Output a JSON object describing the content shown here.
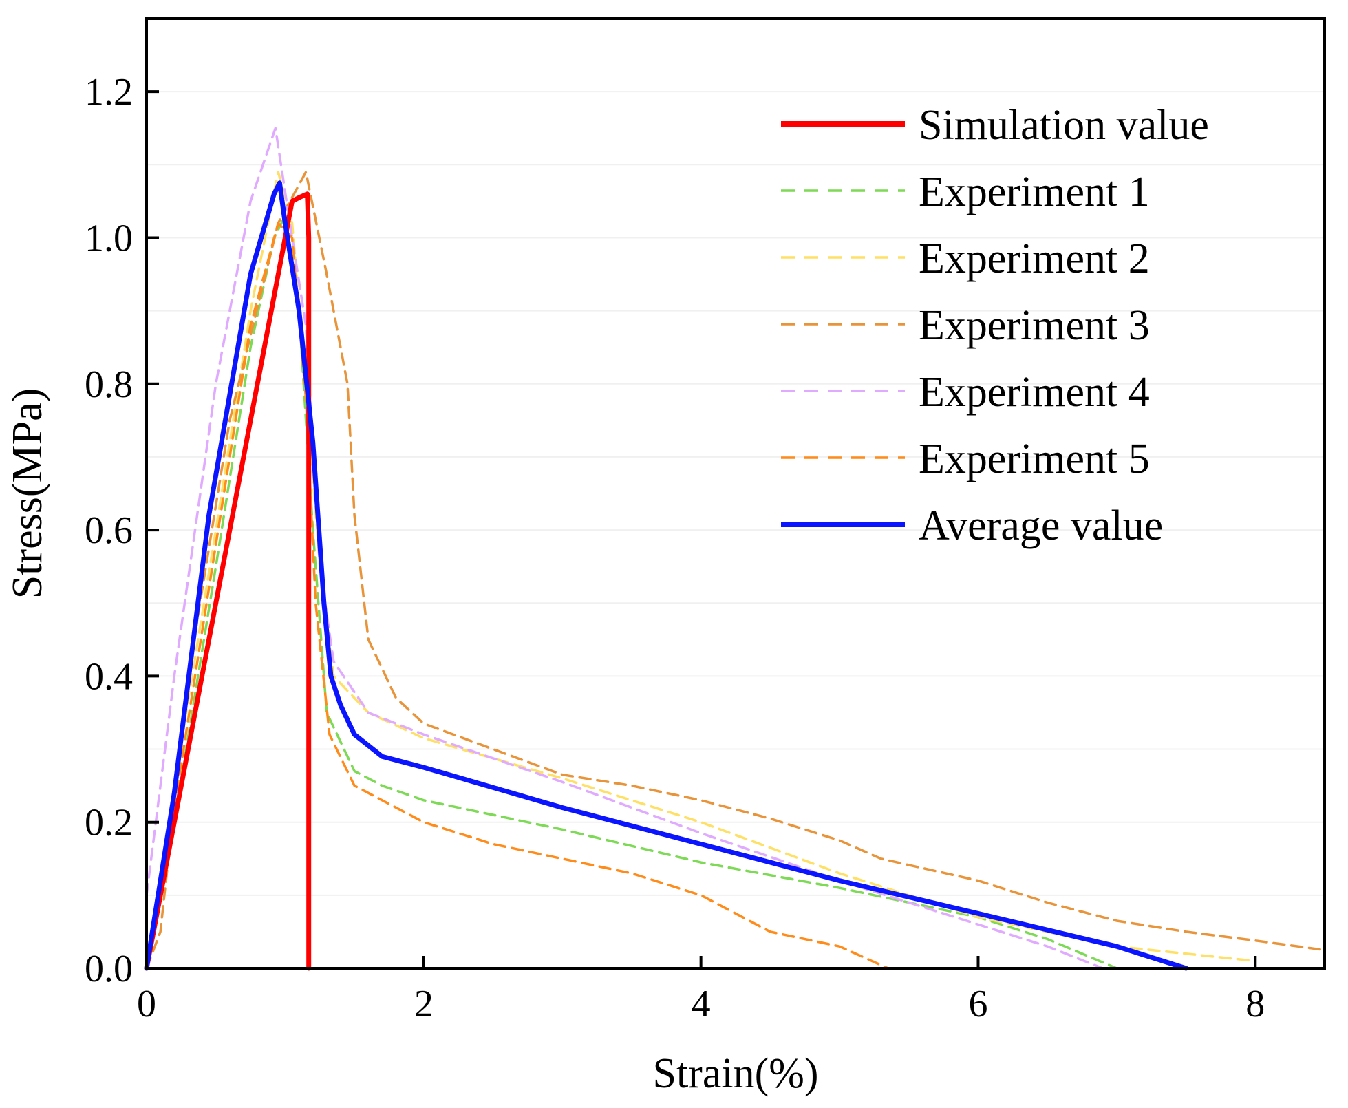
{
  "chart_data": {
    "type": "line",
    "xlabel": "Strain(%)",
    "ylabel": "Stress(MPa)",
    "xlim": [
      0,
      8.5
    ],
    "ylim": [
      0,
      1.3
    ],
    "xticks": [
      0,
      2,
      4,
      6,
      8
    ],
    "xtick_labels": [
      "0",
      "2",
      "4",
      "6",
      "8"
    ],
    "yticks": [
      0,
      0.2,
      0.4,
      0.6,
      0.8,
      1.0,
      1.2
    ],
    "ytick_labels": [
      "0.0",
      "0.2",
      "0.4",
      "0.6",
      "0.8",
      "1.0",
      "1.2"
    ],
    "grid": true,
    "legend_position": "top-right",
    "series": [
      {
        "name": "Simulation value",
        "color": "#ff0000",
        "style": "solid",
        "points": [
          [
            0,
            0
          ],
          [
            1.05,
            1.05
          ],
          [
            1.1,
            1.055
          ],
          [
            1.16,
            1.06
          ],
          [
            1.17,
            1.0
          ],
          [
            1.17,
            0
          ]
        ]
      },
      {
        "name": "Experiment 1",
        "color": "#7ed957",
        "style": "dashed",
        "points": [
          [
            0,
            0
          ],
          [
            0.2,
            0.2
          ],
          [
            0.5,
            0.55
          ],
          [
            0.75,
            0.85
          ],
          [
            0.92,
            1.0
          ],
          [
            1.0,
            1.03
          ],
          [
            1.1,
            0.9
          ],
          [
            1.2,
            0.6
          ],
          [
            1.3,
            0.35
          ],
          [
            1.5,
            0.27
          ],
          [
            1.7,
            0.25
          ],
          [
            2.0,
            0.23
          ],
          [
            3.0,
            0.19
          ],
          [
            4.0,
            0.145
          ],
          [
            5.0,
            0.11
          ],
          [
            6.0,
            0.07
          ],
          [
            6.5,
            0.04
          ],
          [
            7.0,
            0.0
          ]
        ]
      },
      {
        "name": "Experiment 2",
        "color": "#ffe066",
        "style": "dashed",
        "points": [
          [
            0,
            0
          ],
          [
            0.2,
            0.25
          ],
          [
            0.5,
            0.6
          ],
          [
            0.75,
            0.9
          ],
          [
            0.95,
            1.09
          ],
          [
            1.05,
            1.02
          ],
          [
            1.15,
            0.8
          ],
          [
            1.25,
            0.55
          ],
          [
            1.35,
            0.4
          ],
          [
            1.6,
            0.35
          ],
          [
            2.0,
            0.315
          ],
          [
            3.0,
            0.26
          ],
          [
            4.0,
            0.2
          ],
          [
            5.0,
            0.13
          ],
          [
            6.0,
            0.07
          ],
          [
            7.0,
            0.03
          ],
          [
            7.5,
            0.02
          ],
          [
            8.0,
            0.01
          ]
        ]
      },
      {
        "name": "Experiment 3",
        "color": "#e8943a",
        "style": "dashed",
        "points": [
          [
            0,
            0
          ],
          [
            0.1,
            0.05
          ],
          [
            0.3,
            0.4
          ],
          [
            0.6,
            0.75
          ],
          [
            0.95,
            1.02
          ],
          [
            1.15,
            1.09
          ],
          [
            1.3,
            0.95
          ],
          [
            1.45,
            0.8
          ],
          [
            1.5,
            0.62
          ],
          [
            1.6,
            0.45
          ],
          [
            1.8,
            0.37
          ],
          [
            2.0,
            0.335
          ],
          [
            2.5,
            0.3
          ],
          [
            3.0,
            0.265
          ],
          [
            3.5,
            0.25
          ],
          [
            4.0,
            0.23
          ],
          [
            4.5,
            0.205
          ],
          [
            5.0,
            0.175
          ],
          [
            5.3,
            0.15
          ],
          [
            6.0,
            0.12
          ],
          [
            6.5,
            0.09
          ],
          [
            7.0,
            0.065
          ],
          [
            7.5,
            0.05
          ],
          [
            8.0,
            0.038
          ],
          [
            8.5,
            0.025
          ]
        ]
      },
      {
        "name": "Experiment 4",
        "color": "#e0aaff",
        "style": "dashed",
        "points": [
          [
            0,
            0.1
          ],
          [
            0.2,
            0.4
          ],
          [
            0.5,
            0.8
          ],
          [
            0.75,
            1.05
          ],
          [
            0.93,
            1.15
          ],
          [
            1.05,
            1.0
          ],
          [
            1.15,
            0.88
          ],
          [
            1.25,
            0.55
          ],
          [
            1.35,
            0.42
          ],
          [
            1.6,
            0.35
          ],
          [
            2.0,
            0.32
          ],
          [
            3.0,
            0.255
          ],
          [
            4.0,
            0.185
          ],
          [
            5.0,
            0.12
          ],
          [
            6.0,
            0.06
          ],
          [
            6.5,
            0.03
          ],
          [
            6.9,
            0.0
          ]
        ]
      },
      {
        "name": "Experiment 5",
        "color": "#ff8c1a",
        "style": "dashed",
        "points": [
          [
            0,
            0
          ],
          [
            0.2,
            0.22
          ],
          [
            0.5,
            0.58
          ],
          [
            0.75,
            0.88
          ],
          [
            0.95,
            1.02
          ],
          [
            1.05,
            1.0
          ],
          [
            1.15,
            0.78
          ],
          [
            1.22,
            0.5
          ],
          [
            1.32,
            0.32
          ],
          [
            1.5,
            0.25
          ],
          [
            2.0,
            0.2
          ],
          [
            2.5,
            0.17
          ],
          [
            3.0,
            0.15
          ],
          [
            3.5,
            0.13
          ],
          [
            4.0,
            0.1
          ],
          [
            4.5,
            0.05
          ],
          [
            5.0,
            0.03
          ],
          [
            5.35,
            0.0
          ]
        ]
      },
      {
        "name": "Average value",
        "color": "#0a14ff",
        "style": "solid",
        "points": [
          [
            0,
            0
          ],
          [
            0.2,
            0.24
          ],
          [
            0.45,
            0.62
          ],
          [
            0.75,
            0.95
          ],
          [
            0.92,
            1.06
          ],
          [
            0.96,
            1.075
          ],
          [
            1.0,
            1.02
          ],
          [
            1.1,
            0.9
          ],
          [
            1.2,
            0.72
          ],
          [
            1.28,
            0.5
          ],
          [
            1.33,
            0.4
          ],
          [
            1.4,
            0.36
          ],
          [
            1.5,
            0.32
          ],
          [
            1.7,
            0.29
          ],
          [
            2.0,
            0.275
          ],
          [
            3.0,
            0.22
          ],
          [
            4.0,
            0.17
          ],
          [
            5.0,
            0.12
          ],
          [
            6.0,
            0.075
          ],
          [
            7.0,
            0.03
          ],
          [
            7.5,
            0.0
          ]
        ]
      }
    ]
  }
}
